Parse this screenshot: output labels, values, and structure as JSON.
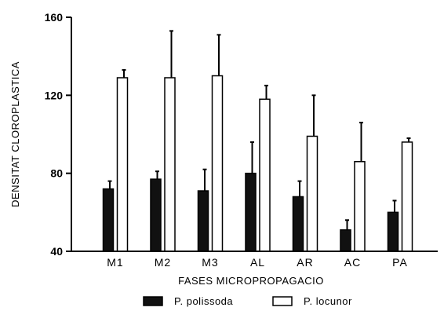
{
  "chart_data": {
    "type": "bar",
    "title": "",
    "xlabel": "FASES MICROPROPAGACIO",
    "ylabel": "DENSITAT CLOROPLASTICA",
    "ylim": [
      40,
      160
    ],
    "yticks": [
      "40",
      "80",
      "120",
      "160"
    ],
    "categories": [
      "M1",
      "M2",
      "M3",
      "AL",
      "AR",
      "AC",
      "PA"
    ],
    "series": [
      {
        "name": "P. polissoda",
        "color": "#111111",
        "values": [
          72,
          77,
          71,
          80,
          68,
          51,
          60
        ],
        "errors": [
          4,
          4,
          11,
          16,
          8,
          5,
          6
        ]
      },
      {
        "name": "P. locunor",
        "color": "#ffffff",
        "values": [
          129,
          129,
          130,
          118,
          99,
          86,
          96
        ],
        "errors": [
          4,
          24,
          21,
          7,
          21,
          20,
          2
        ]
      }
    ],
    "grid": false,
    "legend": "bottom"
  }
}
